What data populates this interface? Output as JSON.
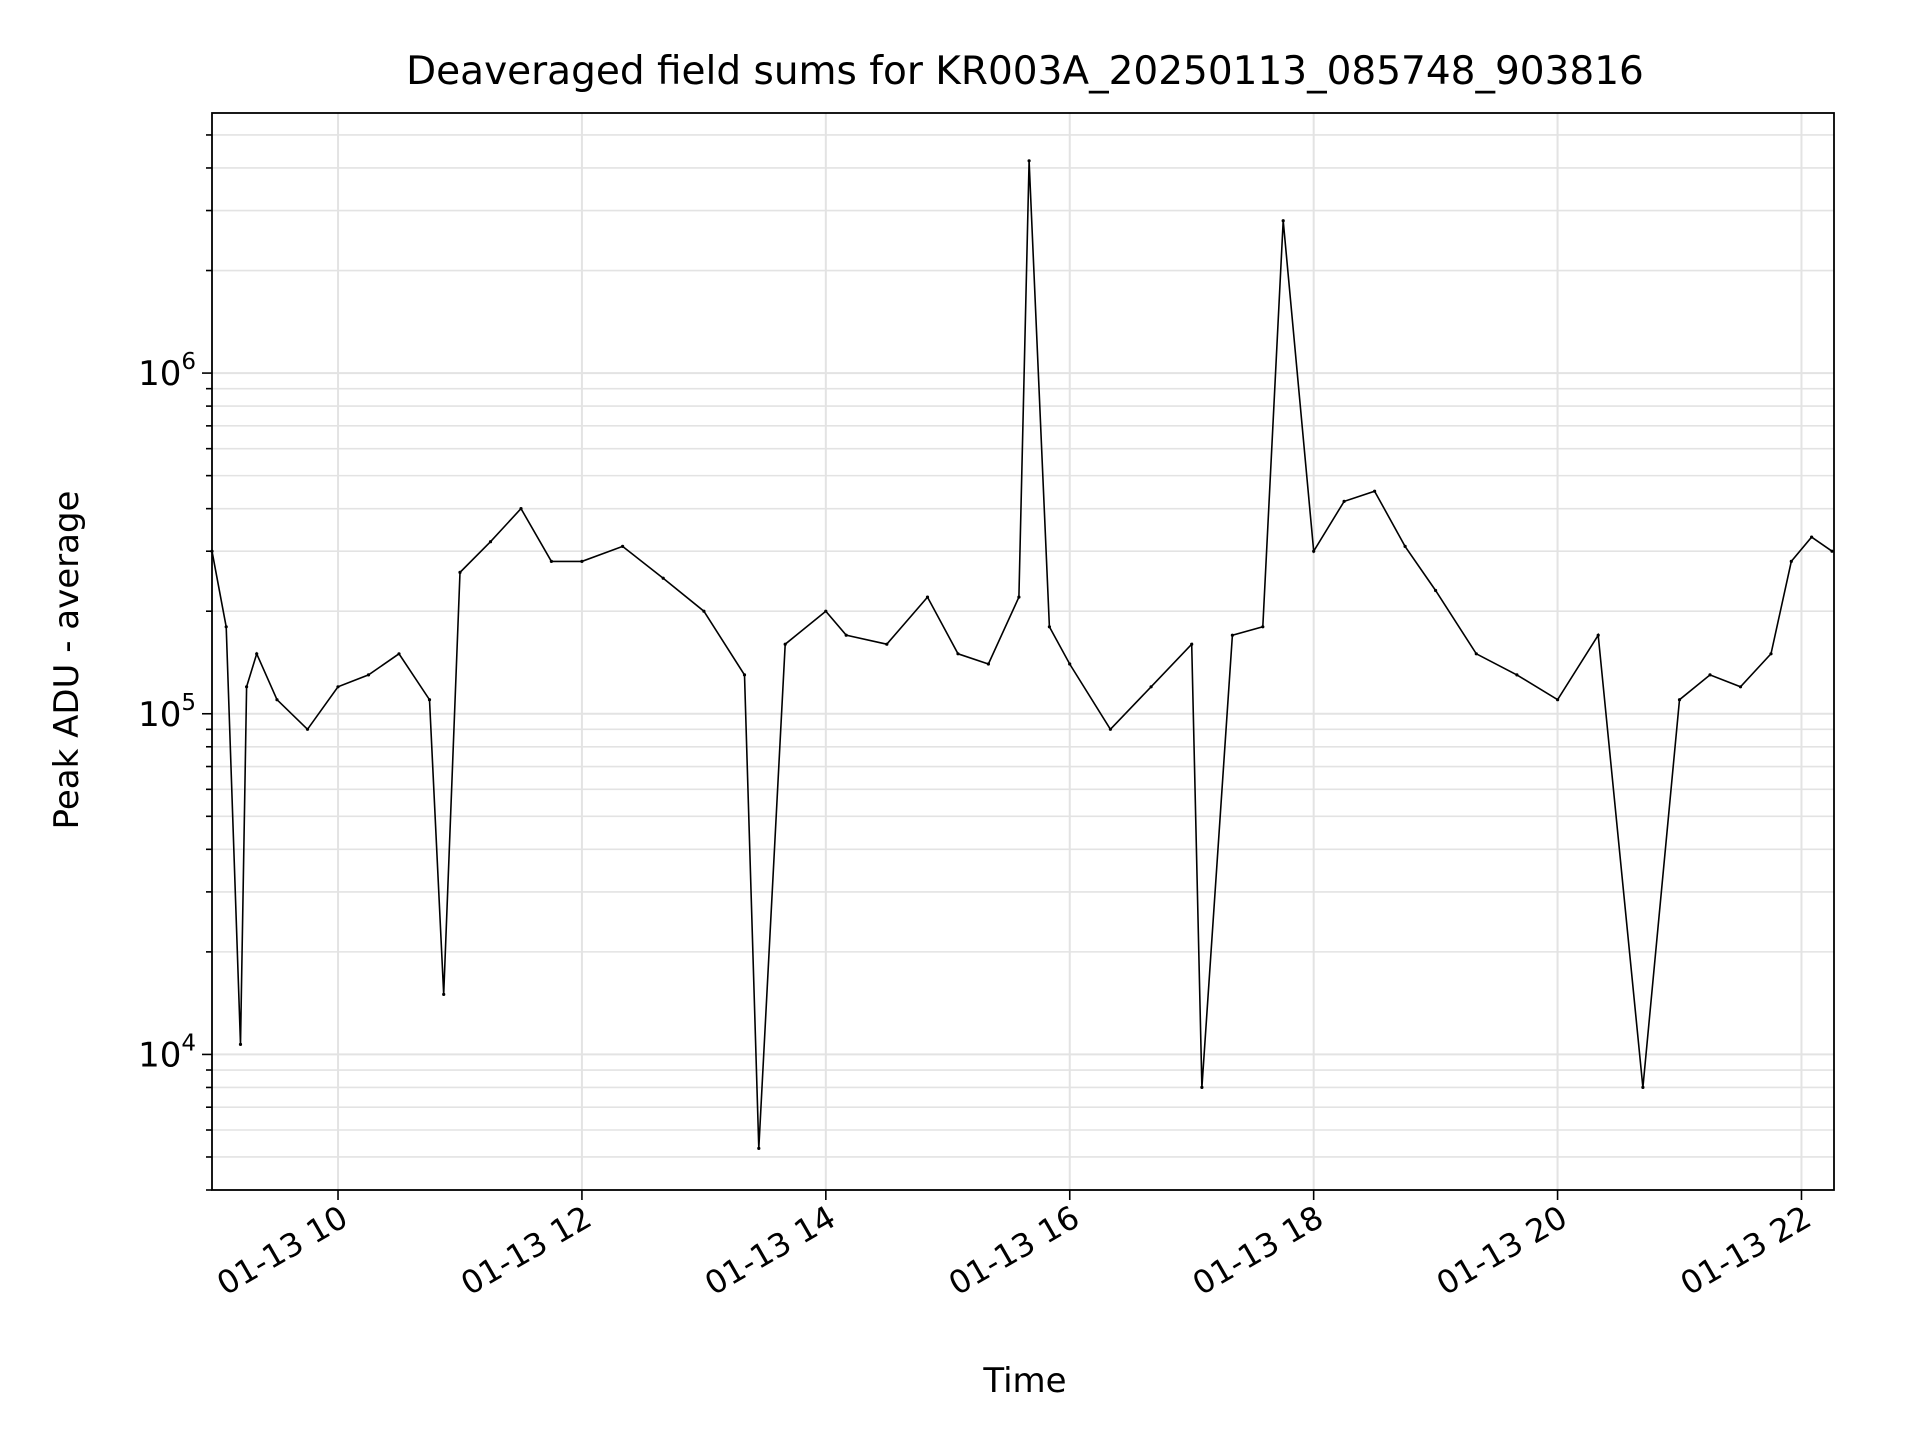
{
  "chart_data": {
    "type": "line",
    "title": "Deaveraged field sums for KR003A_20250113_085748_903816",
    "xlabel": "Time",
    "ylabel": "Peak ADU - average",
    "yscale": "log",
    "ylim": [
      4000,
      5800000
    ],
    "xlim": [
      "2025-01-13 08:58",
      "2025-01-13 22:16"
    ],
    "grid": true,
    "line_color": "#000000",
    "x_ticks": [
      {
        "value": "2025-01-13 10:00",
        "label": "01-13 10"
      },
      {
        "value": "2025-01-13 12:00",
        "label": "01-13 12"
      },
      {
        "value": "2025-01-13 14:00",
        "label": "01-13 14"
      },
      {
        "value": "2025-01-13 16:00",
        "label": "01-13 16"
      },
      {
        "value": "2025-01-13 18:00",
        "label": "01-13 18"
      },
      {
        "value": "2025-01-13 20:00",
        "label": "01-13 20"
      },
      {
        "value": "2025-01-13 22:00",
        "label": "01-13 22"
      }
    ],
    "y_ticks": [
      {
        "value": 10000,
        "base": "10",
        "exp": "4"
      },
      {
        "value": 100000,
        "base": "10",
        "exp": "5"
      },
      {
        "value": 1000000,
        "base": "10",
        "exp": "6"
      }
    ],
    "series": [
      {
        "x": [
          "2025-01-13 08:58",
          "2025-01-13 09:05",
          "2025-01-13 09:12",
          "2025-01-13 09:15",
          "2025-01-13 09:20",
          "2025-01-13 09:30",
          "2025-01-13 09:45",
          "2025-01-13 10:00",
          "2025-01-13 10:15",
          "2025-01-13 10:30",
          "2025-01-13 10:45",
          "2025-01-13 10:52",
          "2025-01-13 11:00",
          "2025-01-13 11:15",
          "2025-01-13 11:30",
          "2025-01-13 11:45",
          "2025-01-13 12:00",
          "2025-01-13 12:20",
          "2025-01-13 12:40",
          "2025-01-13 13:00",
          "2025-01-13 13:20",
          "2025-01-13 13:27",
          "2025-01-13 13:40",
          "2025-01-13 14:00",
          "2025-01-13 14:10",
          "2025-01-13 14:30",
          "2025-01-13 14:50",
          "2025-01-13 15:05",
          "2025-01-13 15:20",
          "2025-01-13 15:35",
          "2025-01-13 15:40",
          "2025-01-13 15:50",
          "2025-01-13 16:00",
          "2025-01-13 16:20",
          "2025-01-13 16:40",
          "2025-01-13 17:00",
          "2025-01-13 17:05",
          "2025-01-13 17:20",
          "2025-01-13 17:35",
          "2025-01-13 17:45",
          "2025-01-13 18:00",
          "2025-01-13 18:15",
          "2025-01-13 18:30",
          "2025-01-13 18:45",
          "2025-01-13 19:00",
          "2025-01-13 19:20",
          "2025-01-13 19:40",
          "2025-01-13 20:00",
          "2025-01-13 20:20",
          "2025-01-13 20:42",
          "2025-01-13 21:00",
          "2025-01-13 21:15",
          "2025-01-13 21:30",
          "2025-01-13 21:45",
          "2025-01-13 21:55",
          "2025-01-13 22:05",
          "2025-01-13 22:15"
        ],
        "y": [
          300000,
          180000,
          10700,
          120000,
          150000,
          110000,
          90000,
          120000,
          130000,
          150000,
          110000,
          15000,
          260000,
          320000,
          400000,
          280000,
          280000,
          310000,
          250000,
          200000,
          130000,
          5300,
          160000,
          200000,
          170000,
          160000,
          220000,
          150000,
          140000,
          220000,
          4200000,
          180000,
          140000,
          90000,
          120000,
          160000,
          8000,
          170000,
          180000,
          2800000,
          300000,
          420000,
          450000,
          310000,
          230000,
          150000,
          130000,
          110000,
          170000,
          8000,
          110000,
          130000,
          120000,
          150000,
          280000,
          330000,
          300000
        ]
      }
    ]
  }
}
